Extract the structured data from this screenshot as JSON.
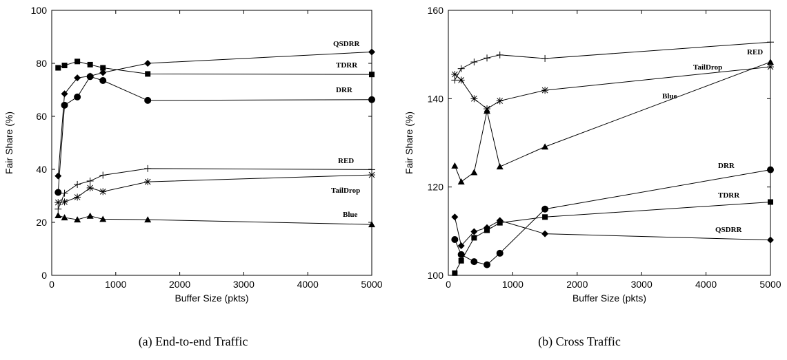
{
  "chart_data": [
    {
      "type": "line",
      "caption": "(a) End-to-end Traffic",
      "xlabel": "Buffer Size (pkts)",
      "ylabel": "Fair Share (%)",
      "xlim": [
        0,
        5000
      ],
      "ylim": [
        0,
        100
      ],
      "xticks": [
        "0",
        "1000",
        "2000",
        "3000",
        "4000",
        "5000"
      ],
      "yticks": [
        "0",
        "20",
        "40",
        "60",
        "80",
        "100"
      ],
      "grid": false,
      "series": [
        {
          "name": "QSDRR",
          "marker": "diamond",
          "x": [
            100,
            200,
            400,
            600,
            800,
            1500,
            5000
          ],
          "y": [
            37.5,
            68.5,
            74.5,
            75.2,
            76.5,
            80,
            84.3
          ]
        },
        {
          "name": "TDRR",
          "marker": "square",
          "x": [
            100,
            200,
            400,
            600,
            800,
            1500,
            5000
          ],
          "y": [
            78.3,
            79.2,
            80.7,
            79.5,
            78.3,
            76,
            75.8
          ]
        },
        {
          "name": "DRR",
          "marker": "circle",
          "x": [
            100,
            200,
            400,
            600,
            800,
            1500,
            5000
          ],
          "y": [
            31.3,
            64.2,
            67.3,
            75,
            73.5,
            66,
            66.3
          ]
        },
        {
          "name": "RED",
          "marker": "plus",
          "x": [
            100,
            200,
            400,
            600,
            800,
            1500,
            5000
          ],
          "y": [
            25,
            31,
            34.3,
            35.6,
            37.8,
            40.3,
            39.9
          ]
        },
        {
          "name": "TailDrop",
          "marker": "star",
          "x": [
            100,
            200,
            400,
            600,
            800,
            1500,
            5000
          ],
          "y": [
            27.5,
            27.7,
            29.5,
            33,
            31.6,
            35.3,
            37.9
          ]
        },
        {
          "name": "Blue",
          "marker": "triangle",
          "x": [
            100,
            200,
            400,
            600,
            800,
            1500,
            5000
          ],
          "y": [
            22.6,
            21.8,
            21,
            22.4,
            21.2,
            21,
            19.2
          ]
        }
      ]
    },
    {
      "type": "line",
      "caption": "(b) Cross Traffic",
      "xlabel": "Buffer Size (pkts)",
      "ylabel": "Fair Share (%)",
      "xlim": [
        0,
        5000
      ],
      "ylim": [
        100,
        160
      ],
      "xticks": [
        "0",
        "1000",
        "2000",
        "3000",
        "4000",
        "5000"
      ],
      "yticks": [
        "100",
        "120",
        "140",
        "160"
      ],
      "grid": false,
      "series": [
        {
          "name": "RED",
          "marker": "plus",
          "x": [
            100,
            200,
            400,
            600,
            800,
            1500,
            5000
          ],
          "y": [
            144.2,
            146.8,
            148.3,
            149.2,
            149.9,
            149.1,
            152.8
          ]
        },
        {
          "name": "TailDrop",
          "marker": "star",
          "x": [
            100,
            200,
            400,
            600,
            800,
            1500,
            5000
          ],
          "y": [
            145.5,
            144.2,
            140,
            137.7,
            139.5,
            141.9,
            147.2
          ]
        },
        {
          "name": "Blue",
          "marker": "triangle",
          "x": [
            100,
            200,
            400,
            600,
            800,
            1500,
            5000
          ],
          "y": [
            124.8,
            121.2,
            123.3,
            137.2,
            124.6,
            129.1,
            148.3
          ]
        },
        {
          "name": "DRR",
          "marker": "circle",
          "x": [
            100,
            200,
            400,
            600,
            800,
            1500,
            5000
          ],
          "y": [
            108.1,
            104.7,
            103.1,
            102.4,
            105,
            115,
            123.9
          ]
        },
        {
          "name": "TDRR",
          "marker": "square",
          "x": [
            100,
            200,
            400,
            600,
            800,
            1500,
            5000
          ],
          "y": [
            100.5,
            103.3,
            108.5,
            110.2,
            111.9,
            113.2,
            116.6
          ]
        },
        {
          "name": "QSDRR",
          "marker": "diamond",
          "x": [
            100,
            200,
            400,
            600,
            800,
            1500,
            5000
          ],
          "y": [
            113.2,
            106.7,
            109.9,
            110.8,
            112.4,
            109.4,
            108
          ]
        }
      ]
    }
  ]
}
